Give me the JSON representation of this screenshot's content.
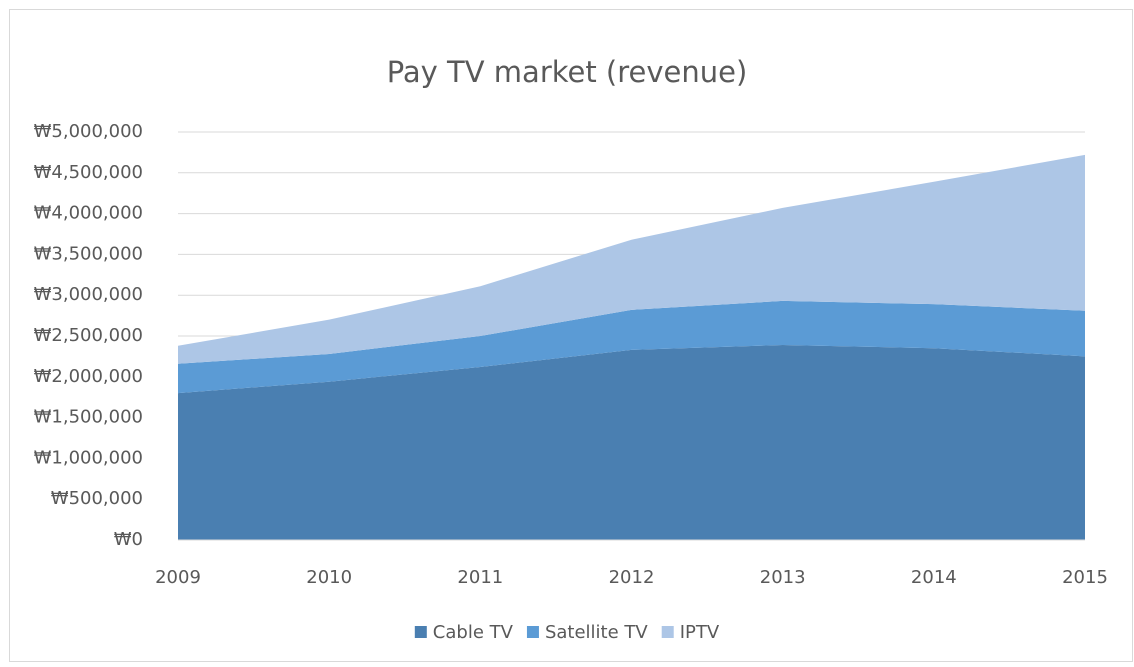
{
  "chart_data": {
    "type": "stacked_area",
    "title": "Pay TV market (revenue)",
    "categories": [
      "2009",
      "2010",
      "2011",
      "2012",
      "2013",
      "2014",
      "2015"
    ],
    "series": [
      {
        "name": "Cable TV",
        "color": "#4a7fb1",
        "values": [
          1800000,
          1940000,
          2120000,
          2330000,
          2390000,
          2350000,
          2250000
        ]
      },
      {
        "name": "Satellite TV",
        "color": "#5b9bd5",
        "values": [
          360000,
          340000,
          380000,
          490000,
          540000,
          540000,
          560000
        ]
      },
      {
        "name": "IPTV",
        "color": "#adc6e6",
        "values": [
          220000,
          420000,
          610000,
          860000,
          1140000,
          1500000,
          1910000
        ]
      }
    ],
    "ylim": [
      0,
      5000000
    ],
    "yticks": [
      {
        "value": 0,
        "label": "₩0"
      },
      {
        "value": 500000,
        "label": "₩500,000"
      },
      {
        "value": 1000000,
        "label": "₩1,000,000"
      },
      {
        "value": 1500000,
        "label": "₩1,500,000"
      },
      {
        "value": 2000000,
        "label": "₩2,000,000"
      },
      {
        "value": 2500000,
        "label": "₩2,500,000"
      },
      {
        "value": 3000000,
        "label": "₩3,000,000"
      },
      {
        "value": 3500000,
        "label": "₩3,500,000"
      },
      {
        "value": 4000000,
        "label": "₩4,000,000"
      },
      {
        "value": 4500000,
        "label": "₩4,500,000"
      },
      {
        "value": 5000000,
        "label": "₩5,000,000"
      }
    ],
    "grid": true,
    "legend": "bottom"
  }
}
